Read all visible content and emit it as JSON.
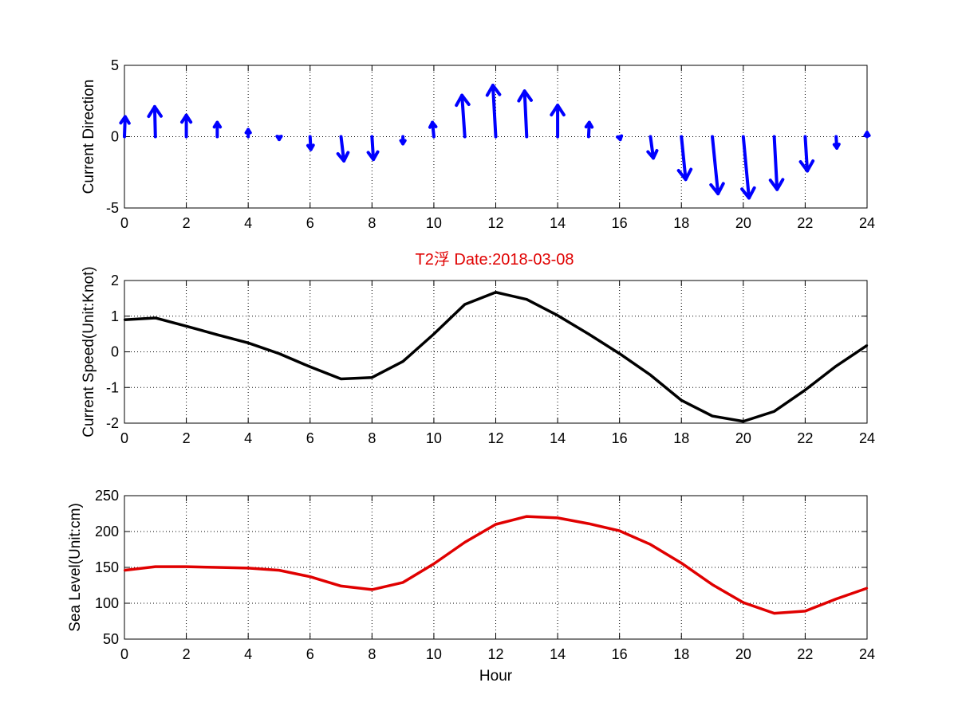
{
  "figure": {
    "title": "T2浮    Date:2018-03-08",
    "title_color": "#e00000"
  },
  "chart_data": [
    {
      "type": "quiver",
      "ylabel": "Current Direction",
      "xlabel": "",
      "xlim": [
        0,
        24
      ],
      "ylim": [
        -5,
        5
      ],
      "xticks": [
        0,
        2,
        4,
        6,
        8,
        10,
        12,
        14,
        16,
        18,
        20,
        22,
        24
      ],
      "yticks": [
        -5,
        0,
        5
      ],
      "grid": true,
      "color": "#0000ff",
      "x": [
        0,
        1,
        2,
        3,
        4,
        5,
        6,
        7,
        8,
        9,
        10,
        11,
        12,
        13,
        14,
        15,
        16,
        17,
        18,
        19,
        20,
        21,
        22,
        23,
        24
      ],
      "u": [
        0.05,
        -0.05,
        0,
        0,
        0,
        0,
        0.05,
        0.2,
        0.1,
        0,
        -0.1,
        -0.2,
        -0.2,
        -0.15,
        0,
        0.05,
        0.05,
        0.2,
        0.3,
        0.4,
        0.4,
        0.2,
        0.15,
        0.05,
        0
      ],
      "v": [
        1.4,
        2.1,
        1.5,
        1.0,
        0.5,
        -0.2,
        -0.9,
        -1.7,
        -1.6,
        -0.5,
        1.0,
        2.9,
        3.6,
        3.2,
        2.2,
        1.0,
        -0.2,
        -1.5,
        -3.0,
        -4.0,
        -4.3,
        -3.7,
        -2.4,
        -0.8,
        0.3
      ]
    },
    {
      "type": "line",
      "ylabel": "Current Speed(Unit:Knot)",
      "xlabel": "",
      "xlim": [
        0,
        24
      ],
      "ylim": [
        -2,
        2
      ],
      "xticks": [
        0,
        2,
        4,
        6,
        8,
        10,
        12,
        14,
        16,
        18,
        20,
        22,
        24
      ],
      "yticks": [
        -2,
        -1,
        0,
        1,
        2
      ],
      "grid": true,
      "series": [
        {
          "color": "#000000",
          "x": [
            0,
            1,
            2,
            3,
            4,
            5,
            6,
            7,
            8,
            9,
            10,
            11,
            12,
            13,
            14,
            15,
            16,
            17,
            18,
            19,
            20,
            21,
            22,
            23,
            24
          ],
          "values": [
            0.9,
            0.95,
            0.72,
            0.48,
            0.25,
            -0.05,
            -0.42,
            -0.76,
            -0.72,
            -0.27,
            0.5,
            1.33,
            1.67,
            1.47,
            1.02,
            0.5,
            -0.05,
            -0.65,
            -1.36,
            -1.8,
            -1.95,
            -1.67,
            -1.07,
            -0.4,
            0.18
          ]
        }
      ]
    },
    {
      "type": "line",
      "ylabel": "Sea Level(Unit:cm)",
      "xlabel": "Hour",
      "xlim": [
        0,
        24
      ],
      "ylim": [
        50,
        250
      ],
      "xticks": [
        0,
        2,
        4,
        6,
        8,
        10,
        12,
        14,
        16,
        18,
        20,
        22,
        24
      ],
      "yticks": [
        50,
        100,
        150,
        200,
        250
      ],
      "grid": true,
      "series": [
        {
          "color": "#e00000",
          "x": [
            0,
            1,
            2,
            3,
            4,
            5,
            6,
            7,
            8,
            9,
            10,
            11,
            12,
            13,
            14,
            15,
            16,
            17,
            18,
            19,
            20,
            21,
            22,
            23,
            24
          ],
          "values": [
            146,
            151,
            151,
            150,
            149,
            146,
            137,
            124,
            119,
            129,
            155,
            185,
            210,
            221,
            219,
            211,
            201,
            182,
            156,
            126,
            101,
            86,
            89,
            106,
            121
          ]
        }
      ]
    }
  ]
}
